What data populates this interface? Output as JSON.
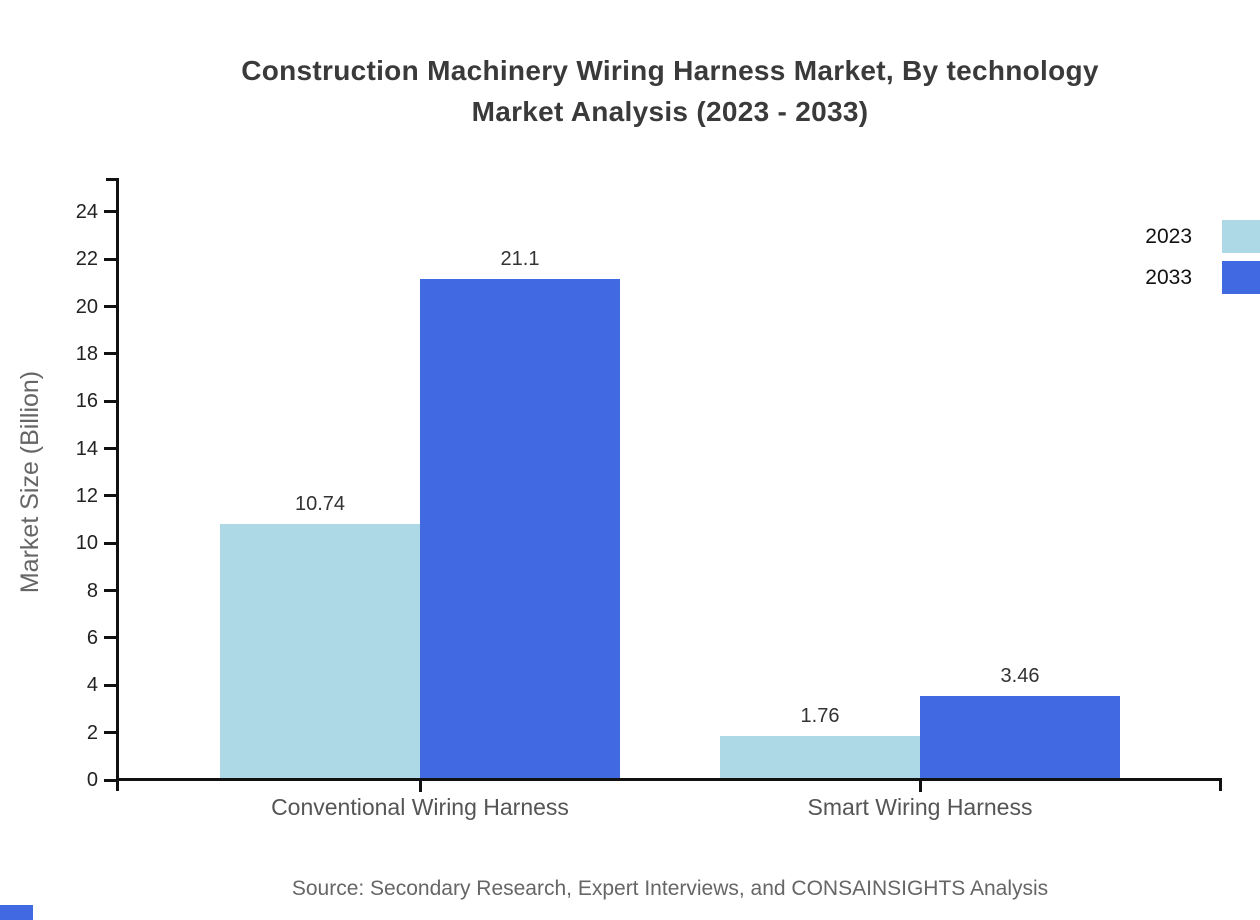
{
  "title": {
    "line1": "Construction Machinery Wiring Harness Market, By technology",
    "line2": "Market Analysis (2023 - 2033)"
  },
  "chart_data": {
    "type": "bar",
    "categories": [
      "Conventional Wiring Harness",
      "Smart Wiring Harness"
    ],
    "series": [
      {
        "name": "2023",
        "color": "#ADD8E6",
        "values": [
          10.74,
          1.76
        ]
      },
      {
        "name": "2033",
        "color": "#4169E1",
        "values": [
          21.1,
          3.46
        ]
      }
    ],
    "ylabel": "Market Size (Billion)",
    "ylim": [
      0,
      25.4
    ],
    "yticks": [
      0,
      2,
      4,
      6,
      8,
      10,
      12,
      14,
      16,
      18,
      20,
      22,
      24
    ],
    "grid": false,
    "legend_position": "top-right",
    "value_labels": [
      [
        "10.74",
        "21.1"
      ],
      [
        "1.76",
        "3.46"
      ]
    ]
  },
  "source_note": "Source: Secondary Research, Expert Interviews, and CONSAINSIGHTS Analysis",
  "colors": {
    "axis": "#111111",
    "title_text": "#3a3a3a",
    "muted_text": "#666666",
    "corner_accent": "#4169E1"
  }
}
